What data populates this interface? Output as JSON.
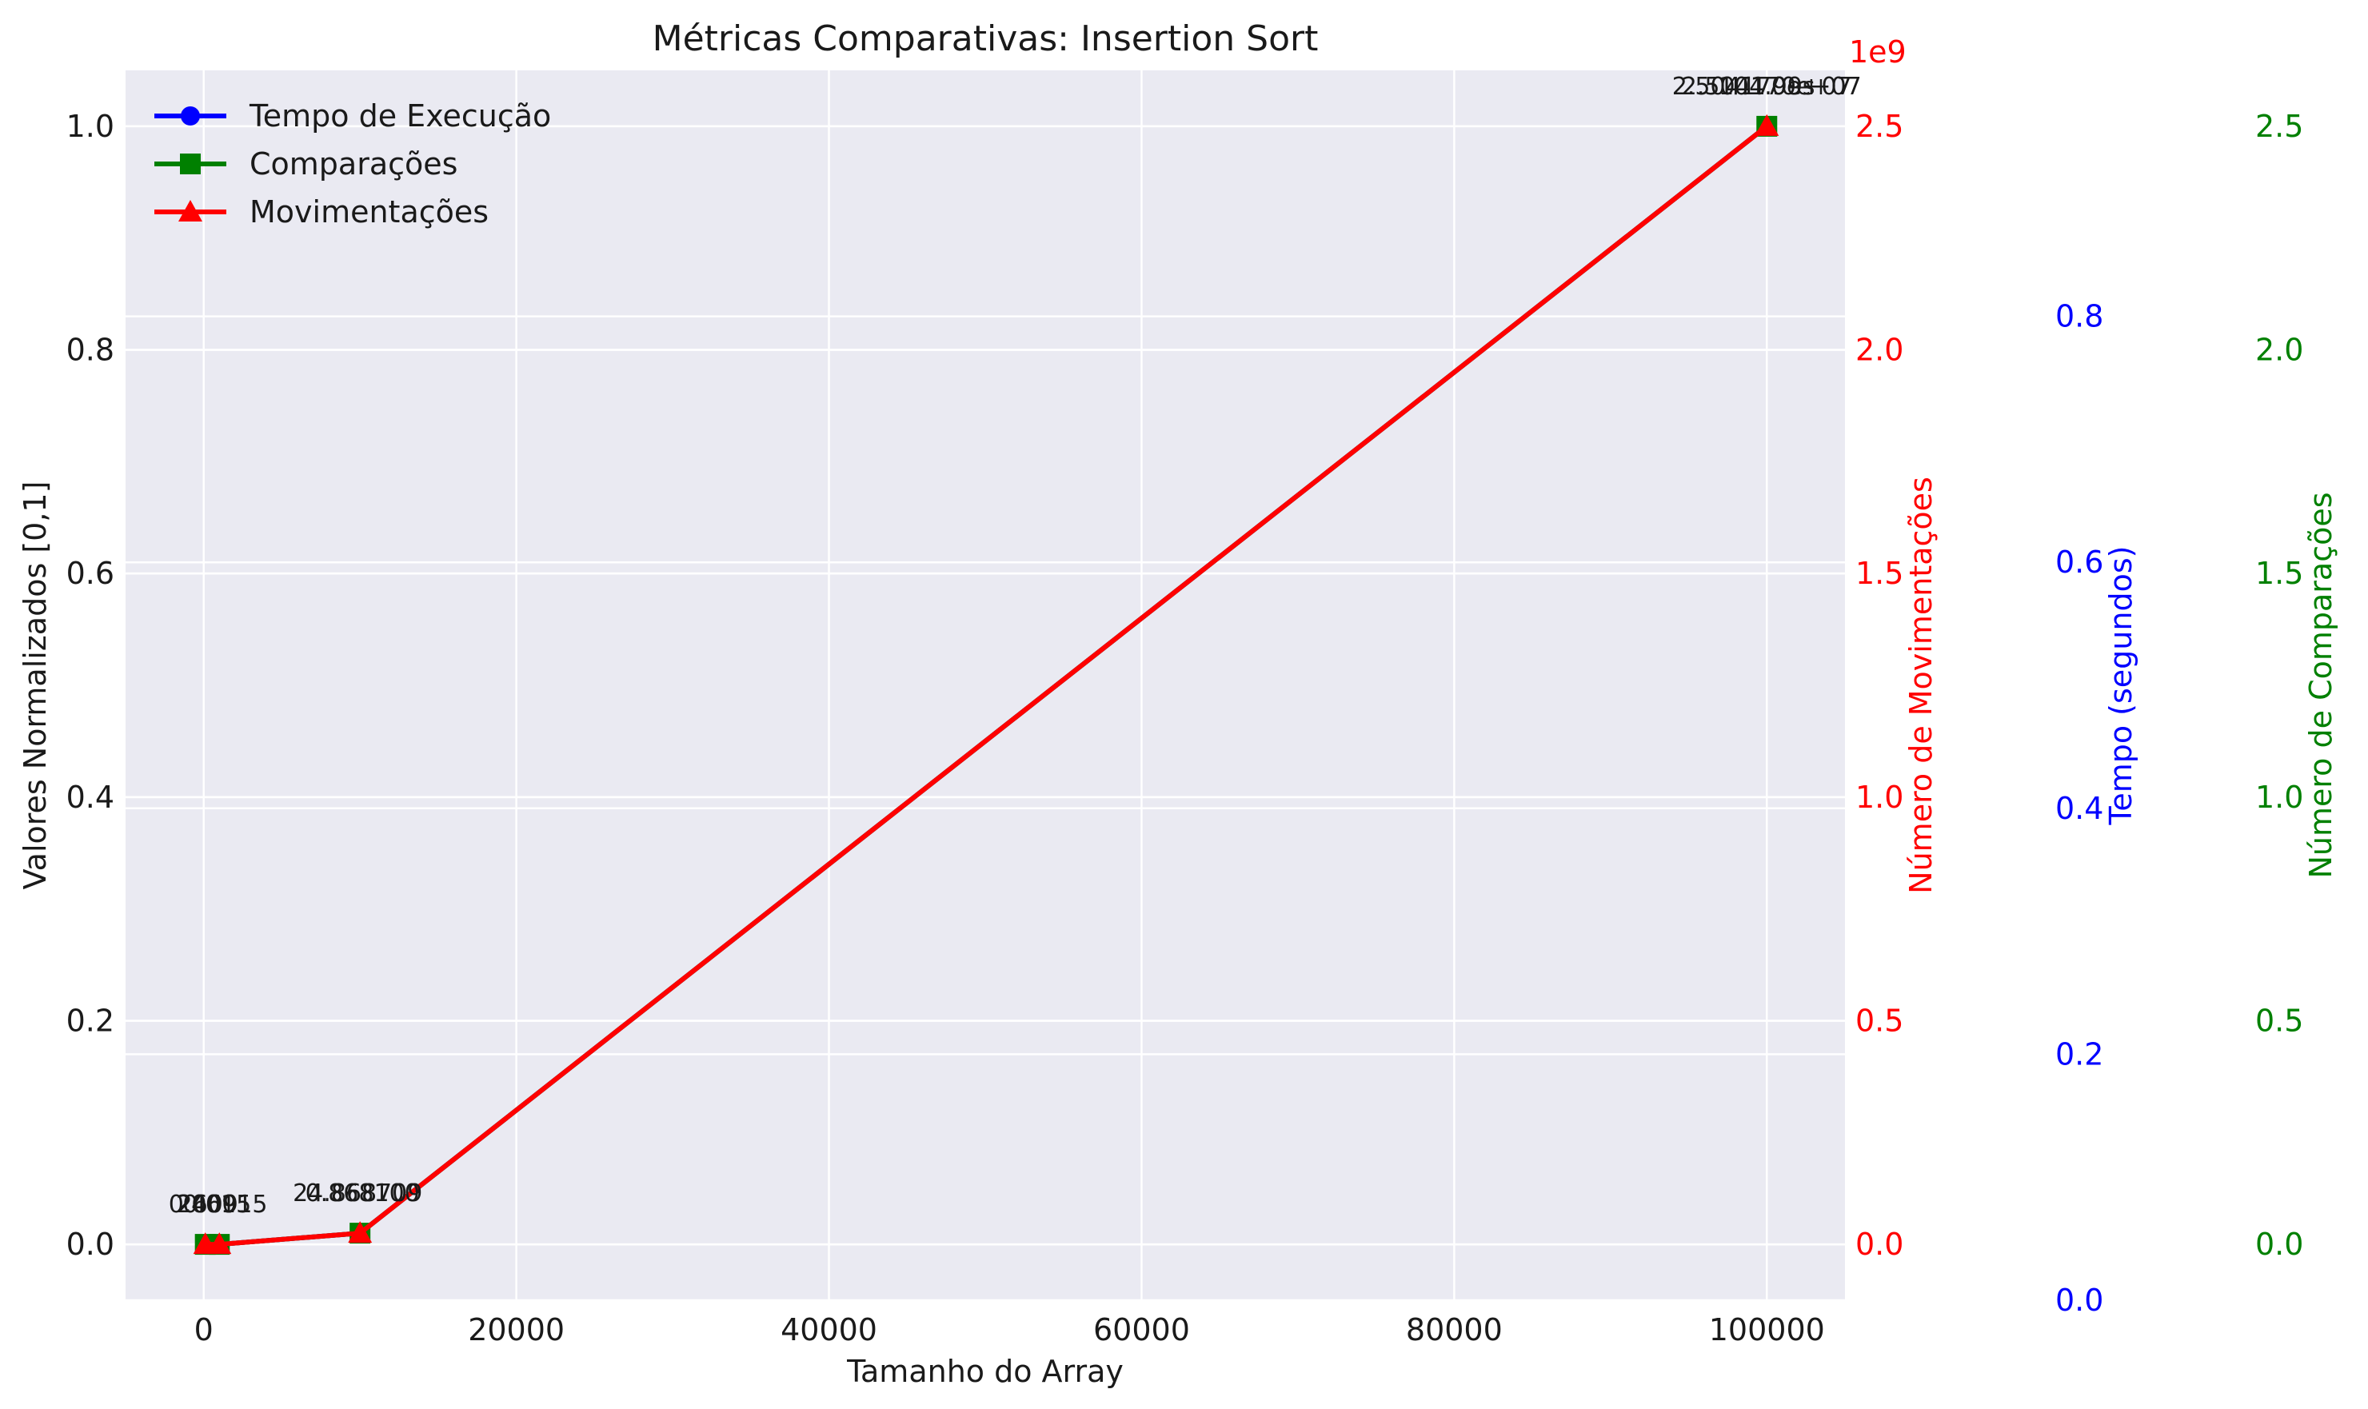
{
  "chart_data": {
    "type": "line",
    "title": "Métricas Comparativas: Insertion Sort",
    "xlabel": "Tamanho do Array",
    "ylabel": "Valores Normalizados [0,1]",
    "x": [
      100,
      1000,
      10000,
      100000
    ],
    "xlim": [
      -5000,
      105000
    ],
    "ylim": [
      -0.05,
      1.05
    ],
    "x_ticks": [
      "0",
      "20000",
      "40000",
      "60000",
      "80000",
      "100000"
    ],
    "y_ticks": [
      "0.0",
      "0.2",
      "0.4",
      "0.6",
      "0.8",
      "1.0"
    ],
    "grid": true,
    "legend_position": "top-left",
    "series": [
      {
        "name": "Tempo de Execução",
        "color": "#0000ff",
        "marker": "circle",
        "values": [
          0.0,
          0.0,
          0.01,
          1.0
        ]
      },
      {
        "name": "Comparações",
        "color": "#008000",
        "marker": "square",
        "values": [
          0.0,
          0.0,
          0.01,
          1.0
        ]
      },
      {
        "name": "Movimentações",
        "color": "#ff0000",
        "marker": "triangle",
        "values": [
          0.0,
          0.0,
          0.01,
          1.0
        ]
      }
    ],
    "annotations": [
      {
        "x": 100,
        "texts": [
          "0.000",
          "2609"
        ]
      },
      {
        "x": 1000,
        "texts": [
          "0.015",
          "246915"
        ]
      },
      {
        "x": 10000,
        "texts": [
          "24.868709",
          "0.868100"
        ]
      },
      {
        "x": 100000,
        "texts": [
          "2.504170e+07",
          "104.99s",
          "2.504170e+07"
        ]
      }
    ],
    "secondary_axes": [
      {
        "label": "Número de Movimentações",
        "color": "#ff0000",
        "ticks": [
          "0.0",
          "0.5",
          "1.0",
          "1.5",
          "2.0",
          "2.5"
        ],
        "offset_label": "1e9",
        "ylim": [
          -0.125,
          2.625
        ]
      },
      {
        "label": "Tempo (segundos)",
        "color": "#0000ff",
        "ticks": [
          "0.0",
          "0.2",
          "0.4",
          "0.6",
          "0.8"
        ],
        "ylim": [
          0,
          1
        ]
      },
      {
        "label": "Número de Comparações",
        "color": "#008000",
        "ticks": [
          "0.0",
          "0.5",
          "1.0",
          "1.5",
          "2.0",
          "2.5"
        ],
        "ylim": [
          -0.125,
          2.625
        ]
      }
    ]
  }
}
